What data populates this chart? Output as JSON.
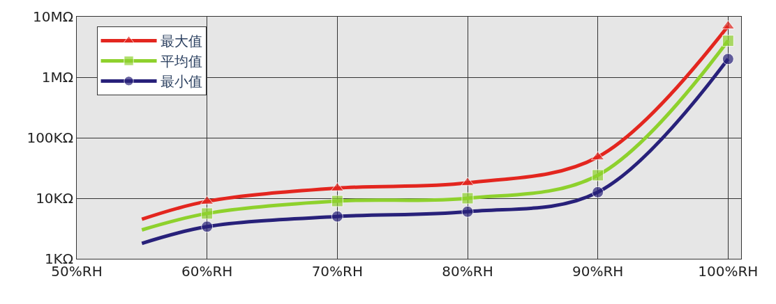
{
  "chart_data": {
    "type": "line",
    "x": [
      55,
      60,
      70,
      80,
      90,
      100
    ],
    "series": [
      {
        "name": "最大值",
        "color": "#e3261f",
        "marker": "triangle",
        "values": [
          4500,
          8900,
          14700,
          18000,
          48000,
          7000000
        ]
      },
      {
        "name": "平均值",
        "color": "#8ed12d",
        "marker": "square",
        "values": [
          3000,
          5600,
          9000,
          10000,
          24000,
          4000000
        ]
      },
      {
        "name": "最小值",
        "color": "#28217a",
        "marker": "circle",
        "values": [
          1800,
          3400,
          5000,
          6000,
          12600,
          2000000
        ]
      }
    ],
    "log": "y",
    "xlim": [
      50,
      101
    ],
    "ylim": [
      1000,
      10000000
    ],
    "xticks": [
      {
        "value": 50,
        "label": "50%RH"
      },
      {
        "value": 60,
        "label": "60%RH"
      },
      {
        "value": 70,
        "label": "70%RH"
      },
      {
        "value": 80,
        "label": "80%RH"
      },
      {
        "value": 90,
        "label": "90%RH"
      },
      {
        "value": 100,
        "label": "100%RH"
      }
    ],
    "yticks": [
      {
        "value": 1000,
        "label": "1KΩ"
      },
      {
        "value": 10000,
        "label": "10KΩ"
      },
      {
        "value": 100000,
        "label": "100KΩ"
      },
      {
        "value": 1000000,
        "label": "1MΩ"
      },
      {
        "value": 10000000,
        "label": "10MΩ"
      }
    ],
    "grid": true,
    "legend": "top left"
  }
}
